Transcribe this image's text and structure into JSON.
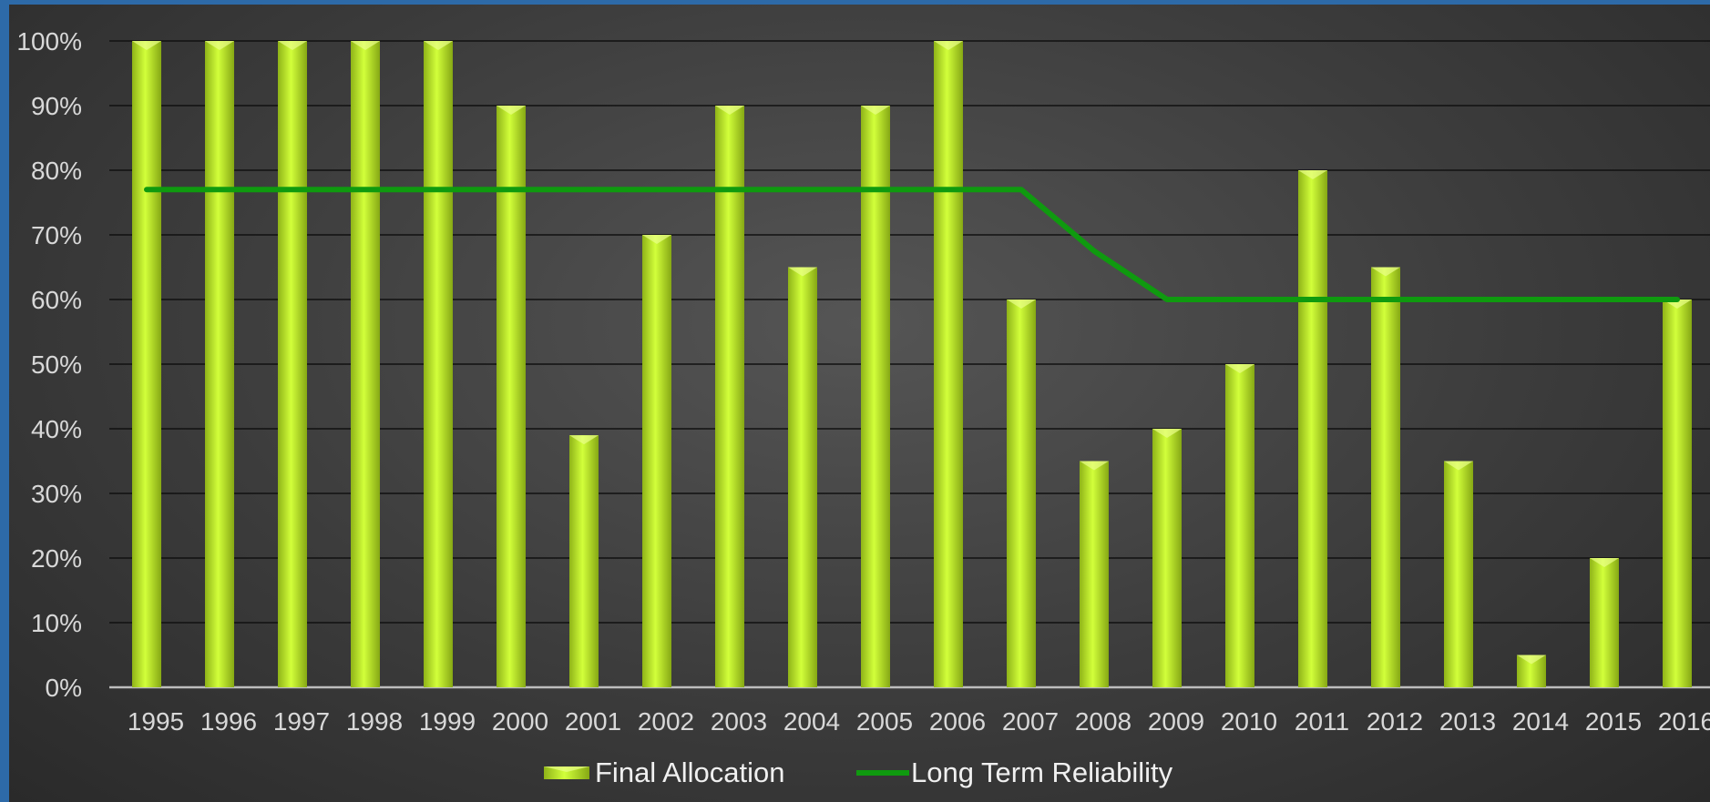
{
  "chart_data": {
    "type": "bar",
    "categories": [
      "1995",
      "1996",
      "1997",
      "1998",
      "1999",
      "2000",
      "2001",
      "2002",
      "2003",
      "2004",
      "2005",
      "2006",
      "2007",
      "2008",
      "2009",
      "2010",
      "2011",
      "2012",
      "2013",
      "2014",
      "2015",
      "2016"
    ],
    "series": [
      {
        "name": "Final Allocation",
        "type": "bar",
        "values": [
          100,
          100,
          100,
          100,
          100,
          90,
          39,
          70,
          90,
          65,
          90,
          100,
          60,
          35,
          40,
          50,
          80,
          65,
          35,
          5,
          20,
          60
        ],
        "color": "#b5e61d"
      },
      {
        "name": "Long Term Reliability",
        "type": "line",
        "values": [
          77,
          77,
          77,
          77,
          77,
          77,
          77,
          77,
          77,
          77,
          77,
          77,
          77,
          67.5,
          60,
          60,
          60,
          60,
          60,
          60,
          60,
          60
        ],
        "color": "#0f9a0f"
      }
    ],
    "ylim": [
      0,
      100
    ],
    "y_ticks": [
      "0%",
      "10%",
      "20%",
      "30%",
      "40%",
      "50%",
      "60%",
      "70%",
      "80%",
      "90%",
      "100%"
    ],
    "grid": true,
    "legend_position": "bottom",
    "title": "",
    "xlabel": "",
    "ylabel": ""
  }
}
